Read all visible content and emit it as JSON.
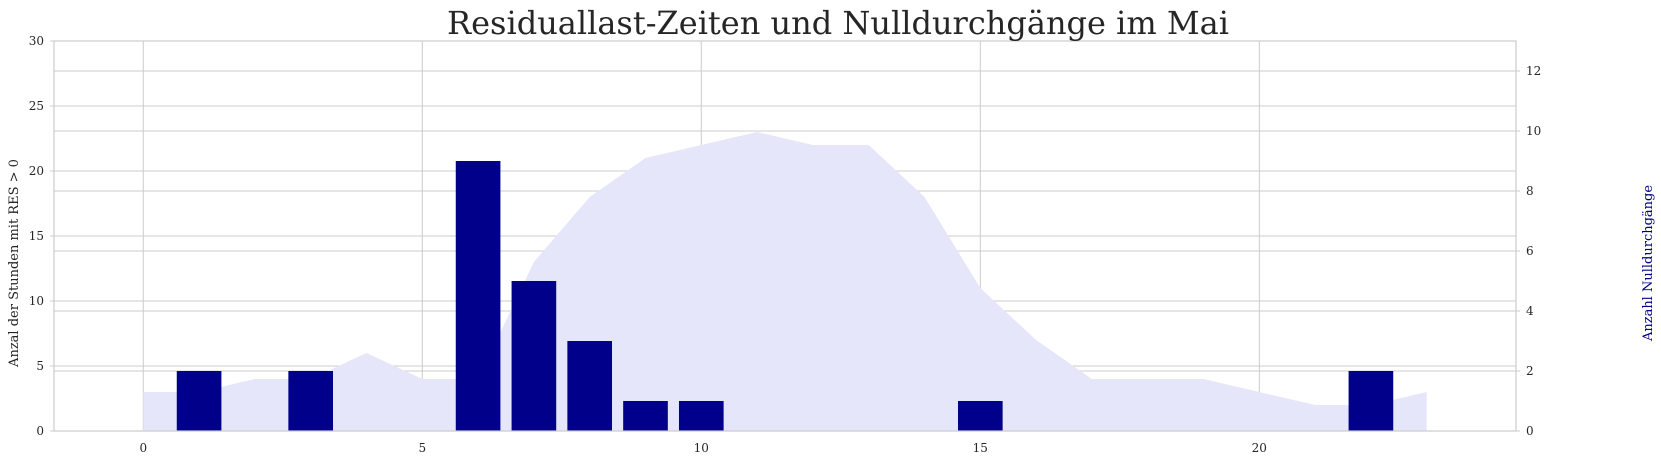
{
  "chart_data": {
    "type": "bar",
    "title": "Residuallast-Zeiten und Nulldurchgänge im Mai",
    "xlabel": "",
    "ylabel": "Anzal der Stunden mit RES > 0",
    "y2label": "Anzahl Nulldurchgänge",
    "xlim": [
      -1.6,
      24.6
    ],
    "ylim": [
      0,
      30
    ],
    "y2lim": [
      0,
      13
    ],
    "xticks": [
      0,
      5,
      10,
      15,
      20
    ],
    "yticks": [
      0,
      5,
      10,
      15,
      20,
      25,
      30
    ],
    "y2ticks": [
      0,
      2,
      4,
      6,
      8,
      10,
      12
    ],
    "grid": true,
    "area_series": {
      "axis": "left",
      "color": "#e6e6fa",
      "x": [
        0,
        1,
        2,
        3,
        4,
        5,
        6,
        7,
        8,
        9,
        10,
        11,
        12,
        13,
        14,
        15,
        16,
        17,
        18,
        19,
        20,
        21,
        22,
        23
      ],
      "values": [
        3,
        3,
        4,
        4,
        6,
        4,
        4,
        13,
        18,
        21,
        22,
        23,
        22,
        22,
        18,
        11,
        7,
        4,
        4,
        4,
        3,
        2,
        2,
        3
      ]
    },
    "bar_series": {
      "axis": "right",
      "color": "#00008b",
      "x": [
        1,
        3,
        6,
        7,
        8,
        9,
        10,
        15,
        22
      ],
      "values": [
        2,
        2,
        9,
        5,
        3,
        1,
        1,
        1,
        2
      ]
    }
  }
}
